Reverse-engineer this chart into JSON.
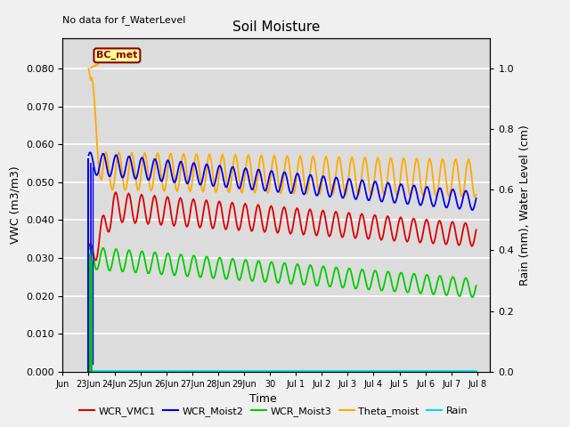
{
  "title": "Soil Moisture",
  "xlabel": "Time",
  "ylabel_left": "VWC (m3/m3)",
  "ylabel_right": "Rain (mm), Water Level (cm)",
  "top_annotation": "No data for f_WaterLevel",
  "annotation_label": "BC_met",
  "bg_color": "#dcdcdc",
  "fig_bg_color": "#f0f0f0",
  "ylim_left": [
    0.0,
    0.088
  ],
  "ylim_right": [
    0.0,
    1.1
  ],
  "yticks_left": [
    0.0,
    0.01,
    0.02,
    0.03,
    0.04,
    0.05,
    0.06,
    0.07,
    0.08
  ],
  "yticks_right": [
    0.0,
    0.2,
    0.4,
    0.6,
    0.8,
    1.0
  ],
  "xlim": [
    0,
    16.5
  ],
  "tick_positions": [
    0,
    1,
    2,
    3,
    4,
    5,
    6,
    7,
    8,
    9,
    10,
    11,
    12,
    13,
    14,
    15,
    16
  ],
  "tick_labels": [
    "Jun",
    "23Jun",
    "24Jun",
    "25Jun",
    "26Jun",
    "27Jun",
    "28Jun",
    "29Jun",
    "30",
    "Jul 1",
    "Jul 2",
    "Jul 3",
    "Jul 4",
    "Jul 5",
    "Jul 6",
    "Jul 7",
    "Jul 8"
  ],
  "series_colors": {
    "WCR_VMC1": "#dd0000",
    "WCR_Moist2": "#0000ee",
    "WCR_Moist3": "#00cc00",
    "Theta_moist": "#ffaa00",
    "Rain": "#00dddd"
  },
  "linewidth": 1.3,
  "annotation_box_color": "#ffff99",
  "annotation_border_color": "#8b0000",
  "annotation_text_color": "#8b0000"
}
